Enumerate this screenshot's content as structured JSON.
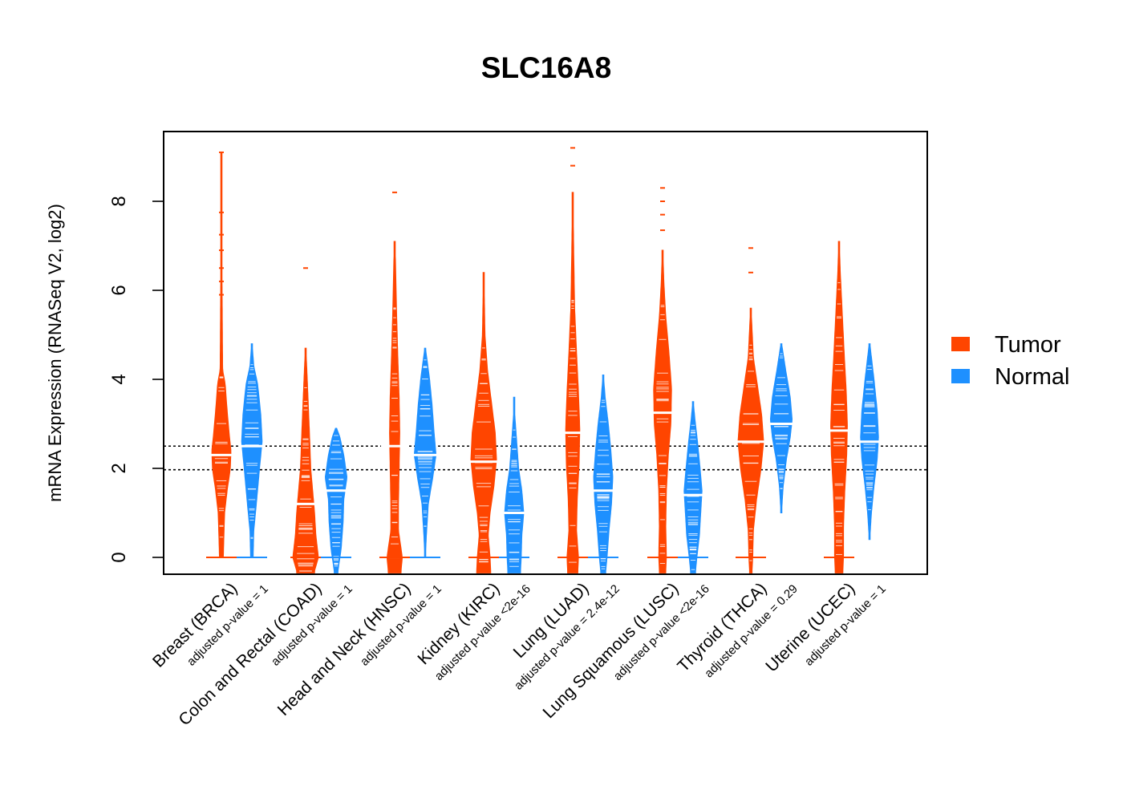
{
  "chart_data": {
    "type": "violin",
    "title": "SLC16A8",
    "xlabel": "",
    "ylabel": "mRNA Expression (RNASeq V2, log2)",
    "ylim": [
      -0.35,
      9.6
    ],
    "yticks": [
      "0",
      "2",
      "4",
      "6",
      "8"
    ],
    "reference_lines": [
      1.97,
      2.5
    ],
    "legend": {
      "position": "right",
      "items": [
        {
          "label": "Tumor",
          "color": "#FF4500"
        },
        {
          "label": "Normal",
          "color": "#1E90FF"
        }
      ]
    },
    "groups": [
      {
        "category": "Breast (BRCA)",
        "pvalue": "adjusted p-value = 1",
        "tumor": {
          "min": 0,
          "max": 9.1,
          "median": 2.3,
          "outliers": [
            9.1,
            7.75,
            7.25,
            6.9,
            6.5,
            6.2,
            5.9
          ],
          "profile": [
            [
              0,
              0.15
            ],
            [
              0.5,
              0.2
            ],
            [
              1,
              0.25
            ],
            [
              1.5,
              0.45
            ],
            [
              2,
              0.7
            ],
            [
              2.4,
              0.75
            ],
            [
              2.8,
              0.6
            ],
            [
              3.3,
              0.45
            ],
            [
              3.9,
              0.3
            ],
            [
              4.2,
              0.1
            ],
            [
              6.2,
              0.05
            ]
          ]
        },
        "normal": {
          "min": 0,
          "max": 4.8,
          "median": 2.5,
          "outliers": [],
          "profile": [
            [
              0,
              0.1
            ],
            [
              0.6,
              0.15
            ],
            [
              1.2,
              0.35
            ],
            [
              2,
              0.6
            ],
            [
              2.6,
              0.8
            ],
            [
              3.2,
              0.7
            ],
            [
              3.9,
              0.45
            ],
            [
              4.3,
              0.15
            ],
            [
              4.8,
              0.02
            ]
          ]
        }
      },
      {
        "category": "Colon and Rectal (COAD)",
        "pvalue": "adjusted p-value = 1",
        "tumor": {
          "min": -0.35,
          "max": 4.7,
          "median": 1.2,
          "outliers": [
            6.5
          ],
          "profile": [
            [
              -0.3,
              0.7
            ],
            [
              0,
              1.0
            ],
            [
              0.5,
              0.8
            ],
            [
              1,
              0.7
            ],
            [
              1.5,
              0.55
            ],
            [
              2,
              0.4
            ],
            [
              2.8,
              0.3
            ],
            [
              3.5,
              0.2
            ],
            [
              4.2,
              0.1
            ],
            [
              4.7,
              0.02
            ]
          ]
        },
        "normal": {
          "min": -0.35,
          "max": 2.9,
          "median": 1.5,
          "outliers": [],
          "profile": [
            [
              -0.3,
              0.15
            ],
            [
              0.2,
              0.4
            ],
            [
              0.8,
              0.55
            ],
            [
              1.3,
              0.6
            ],
            [
              1.8,
              0.85
            ],
            [
              2.3,
              0.6
            ],
            [
              2.7,
              0.3
            ],
            [
              2.9,
              0.05
            ]
          ]
        }
      },
      {
        "category": "Head and Neck (HNSC)",
        "pvalue": "adjusted p-value = 1",
        "tumor": {
          "min": -0.35,
          "max": 7.1,
          "median": 2.5,
          "outliers": [
            8.2
          ],
          "profile": [
            [
              -0.3,
              0.5
            ],
            [
              0,
              0.6
            ],
            [
              0.6,
              0.3
            ],
            [
              1.2,
              0.3
            ],
            [
              2,
              0.35
            ],
            [
              2.8,
              0.4
            ],
            [
              3.6,
              0.35
            ],
            [
              4.5,
              0.25
            ],
            [
              5.5,
              0.15
            ],
            [
              6.5,
              0.08
            ],
            [
              7.1,
              0.02
            ]
          ]
        },
        "normal": {
          "min": 0,
          "max": 4.7,
          "median": 2.3,
          "outliers": [],
          "profile": [
            [
              0,
              0.02
            ],
            [
              0.5,
              0.1
            ],
            [
              1.2,
              0.25
            ],
            [
              1.8,
              0.6
            ],
            [
              2.3,
              0.85
            ],
            [
              2.8,
              0.7
            ],
            [
              3.4,
              0.55
            ],
            [
              4,
              0.35
            ],
            [
              4.7,
              0.03
            ]
          ]
        }
      },
      {
        "category": "Kidney (KIRC)",
        "pvalue": "adjusted p-value <2e-16",
        "tumor": {
          "min": -0.35,
          "max": 6.4,
          "median": 2.15,
          "outliers": [],
          "profile": [
            [
              -0.3,
              0.55
            ],
            [
              0,
              0.5
            ],
            [
              0.5,
              0.35
            ],
            [
              1,
              0.5
            ],
            [
              1.6,
              0.8
            ],
            [
              2.2,
              1.0
            ],
            [
              2.8,
              0.9
            ],
            [
              3.5,
              0.6
            ],
            [
              4.2,
              0.3
            ],
            [
              5,
              0.1
            ],
            [
              6.4,
              0.02
            ]
          ]
        },
        "normal": {
          "min": -0.35,
          "max": 3.6,
          "median": 1.0,
          "outliers": [],
          "profile": [
            [
              -0.3,
              0.5
            ],
            [
              0,
              0.55
            ],
            [
              0.5,
              0.6
            ],
            [
              1,
              0.75
            ],
            [
              1.5,
              0.6
            ],
            [
              2,
              0.35
            ],
            [
              2.6,
              0.2
            ],
            [
              3.2,
              0.05
            ],
            [
              3.6,
              0.02
            ]
          ]
        }
      },
      {
        "category": "Lung (LUAD)",
        "pvalue": "adjusted p-value = 2.4e-12",
        "tumor": {
          "min": -0.35,
          "max": 8.2,
          "median": 2.8,
          "outliers": [
            9.2,
            8.8
          ],
          "profile": [
            [
              -0.3,
              0.4
            ],
            [
              0,
              0.45
            ],
            [
              0.6,
              0.3
            ],
            [
              1.3,
              0.35
            ],
            [
              2.1,
              0.5
            ],
            [
              2.9,
              0.55
            ],
            [
              3.7,
              0.45
            ],
            [
              4.6,
              0.3
            ],
            [
              5.6,
              0.15
            ],
            [
              7,
              0.07
            ],
            [
              8.2,
              0.02
            ]
          ]
        },
        "normal": {
          "min": -0.35,
          "max": 4.1,
          "median": 1.5,
          "outliers": [],
          "profile": [
            [
              -0.3,
              0.2
            ],
            [
              0,
              0.3
            ],
            [
              0.6,
              0.45
            ],
            [
              1.2,
              0.65
            ],
            [
              1.8,
              0.75
            ],
            [
              2.4,
              0.6
            ],
            [
              3,
              0.4
            ],
            [
              3.6,
              0.15
            ],
            [
              4.1,
              0.02
            ]
          ]
        }
      },
      {
        "category": "Lung Squamous (LUSC)",
        "pvalue": "adjusted p-value <2e-16",
        "tumor": {
          "min": -0.35,
          "max": 6.9,
          "median": 3.25,
          "outliers": [
            8.3,
            8.0,
            7.7,
            7.35
          ],
          "profile": [
            [
              -0.3,
              0.25
            ],
            [
              0,
              0.3
            ],
            [
              0.7,
              0.25
            ],
            [
              1.5,
              0.3
            ],
            [
              2.3,
              0.45
            ],
            [
              3,
              0.65
            ],
            [
              3.8,
              0.7
            ],
            [
              4.6,
              0.5
            ],
            [
              5.4,
              0.25
            ],
            [
              6.2,
              0.1
            ],
            [
              6.9,
              0.02
            ]
          ]
        },
        "normal": {
          "min": -0.35,
          "max": 3.5,
          "median": 1.4,
          "outliers": [],
          "profile": [
            [
              -0.3,
              0.2
            ],
            [
              0,
              0.3
            ],
            [
              0.5,
              0.5
            ],
            [
              1,
              0.6
            ],
            [
              1.5,
              0.7
            ],
            [
              2,
              0.55
            ],
            [
              2.6,
              0.35
            ],
            [
              3.1,
              0.15
            ],
            [
              3.5,
              0.02
            ]
          ]
        }
      },
      {
        "category": "Thyroid (THCA)",
        "pvalue": "adjusted p-value = 0.29",
        "tumor": {
          "min": -0.35,
          "max": 5.6,
          "median": 2.6,
          "outliers": [
            6.95,
            6.4
          ],
          "profile": [
            [
              -0.3,
              0.1
            ],
            [
              0,
              0.15
            ],
            [
              0.6,
              0.2
            ],
            [
              1.3,
              0.45
            ],
            [
              2,
              0.8
            ],
            [
              2.6,
              1.0
            ],
            [
              3.2,
              0.85
            ],
            [
              3.9,
              0.5
            ],
            [
              4.5,
              0.2
            ],
            [
              5.6,
              0.02
            ]
          ]
        },
        "normal": {
          "min": 1.0,
          "max": 4.8,
          "median": 3.0,
          "outliers": [],
          "profile": [
            [
              1,
              0.02
            ],
            [
              1.6,
              0.15
            ],
            [
              2.2,
              0.4
            ],
            [
              2.7,
              0.7
            ],
            [
              3.1,
              0.85
            ],
            [
              3.6,
              0.7
            ],
            [
              4.2,
              0.35
            ],
            [
              4.8,
              0.03
            ]
          ]
        }
      },
      {
        "category": "Uterine (UCEC)",
        "pvalue": "adjusted p-value = 1",
        "tumor": {
          "min": -0.35,
          "max": 7.1,
          "median": 2.85,
          "outliers": [],
          "profile": [
            [
              -0.3,
              0.3
            ],
            [
              0,
              0.35
            ],
            [
              0.7,
              0.35
            ],
            [
              1.5,
              0.45
            ],
            [
              2.3,
              0.6
            ],
            [
              3,
              0.65
            ],
            [
              3.8,
              0.55
            ],
            [
              4.6,
              0.4
            ],
            [
              5.5,
              0.25
            ],
            [
              6.4,
              0.1
            ],
            [
              7.1,
              0.02
            ]
          ]
        },
        "normal": {
          "min": 0.4,
          "max": 4.8,
          "median": 2.6,
          "outliers": [],
          "profile": [
            [
              0.4,
              0.02
            ],
            [
              1,
              0.15
            ],
            [
              1.6,
              0.35
            ],
            [
              2.2,
              0.6
            ],
            [
              2.7,
              0.7
            ],
            [
              3.3,
              0.6
            ],
            [
              4,
              0.35
            ],
            [
              4.8,
              0.03
            ]
          ]
        }
      }
    ]
  }
}
